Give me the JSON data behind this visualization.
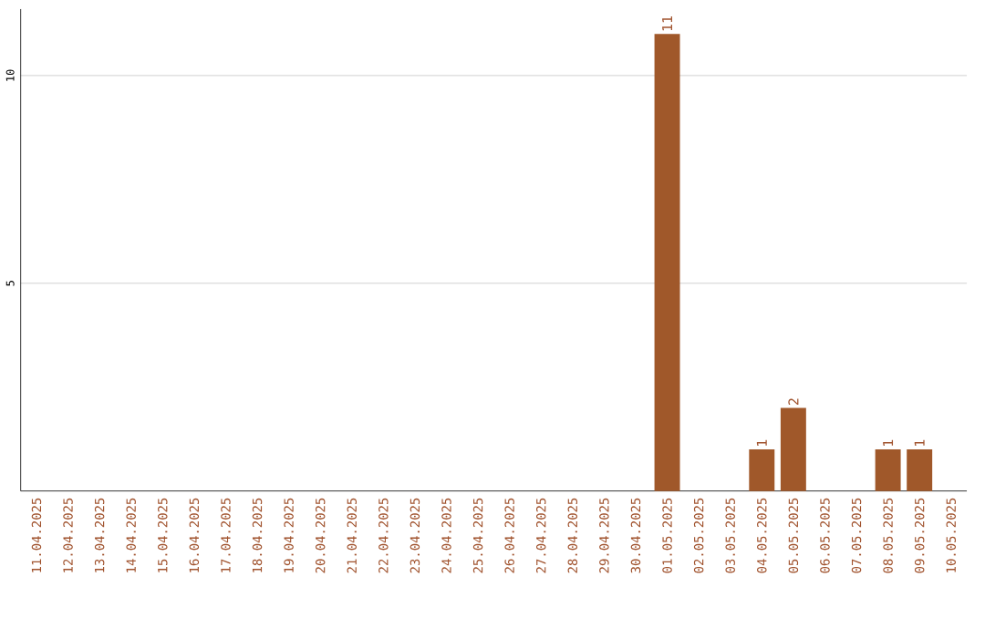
{
  "chart_data": {
    "type": "bar",
    "categories": [
      "11.04.2025",
      "12.04.2025",
      "13.04.2025",
      "14.04.2025",
      "15.04.2025",
      "16.04.2025",
      "17.04.2025",
      "18.04.2025",
      "19.04.2025",
      "20.04.2025",
      "21.04.2025",
      "22.04.2025",
      "23.04.2025",
      "24.04.2025",
      "25.04.2025",
      "26.04.2025",
      "27.04.2025",
      "28.04.2025",
      "29.04.2025",
      "30.04.2025",
      "01.05.2025",
      "02.05.2025",
      "03.05.2025",
      "04.05.2025",
      "05.05.2025",
      "06.05.2025",
      "07.05.2025",
      "08.05.2025",
      "09.05.2025",
      "10.05.2025"
    ],
    "values": [
      0,
      0,
      0,
      0,
      0,
      0,
      0,
      0,
      0,
      0,
      0,
      0,
      0,
      0,
      0,
      0,
      0,
      0,
      0,
      0,
      11,
      0,
      0,
      1,
      2,
      0,
      0,
      1,
      1,
      0
    ],
    "value_labels": [
      null,
      null,
      null,
      null,
      null,
      null,
      null,
      null,
      null,
      null,
      null,
      null,
      null,
      null,
      null,
      null,
      null,
      null,
      null,
      null,
      "11",
      null,
      null,
      "1",
      "2",
      null,
      null,
      "1",
      "1",
      null
    ],
    "color": "#a0582a",
    "ylim": [
      0,
      11.6
    ],
    "yticks": [
      5,
      10
    ],
    "grid": "y"
  }
}
